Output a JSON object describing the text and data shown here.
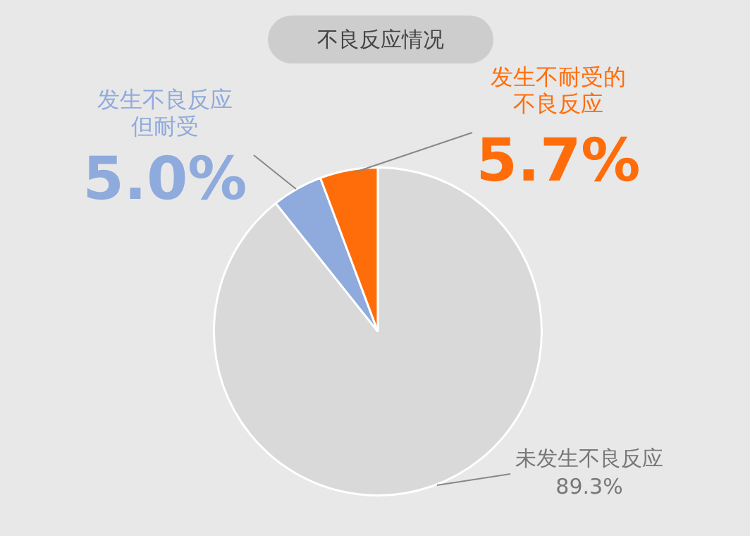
{
  "chart_data": {
    "type": "pie",
    "title": "不良反应情况",
    "categories": [
      "未发生不良反应",
      "发生不良反应但耐受",
      "发生不耐受的不良反应"
    ],
    "values": [
      89.3,
      5.0,
      5.7
    ],
    "value_labels": [
      "89.3%",
      "5.0%",
      "5.7%"
    ],
    "colors": [
      "#d9d9d9",
      "#8faadc",
      "#ff6d0a"
    ],
    "legend": false
  }
}
